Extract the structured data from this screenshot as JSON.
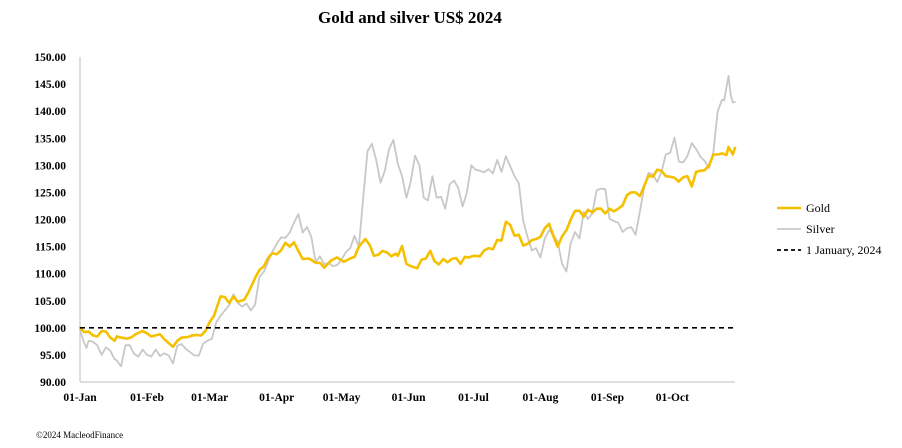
{
  "chart_data": {
    "type": "line",
    "title": "Gold and silver  US$ 2024",
    "xlabel": "",
    "ylabel": "",
    "ylim": [
      90,
      150
    ],
    "y_ticks": [
      "90.00",
      "95.00",
      "100.00",
      "105.00",
      "110.00",
      "115.00",
      "120.00",
      "125.00",
      "130.00",
      "135.00",
      "140.00",
      "145.00",
      "150.00"
    ],
    "x_ticks": [
      "01-Jan",
      "01-Feb",
      "01-Mar",
      "01-Apr",
      "01-May",
      "01-Jun",
      "01-Jul",
      "01-Aug",
      "01-Sep",
      "01-Oct"
    ],
    "x_range_days": [
      1,
      304
    ],
    "x_tick_days": [
      1,
      32,
      61,
      92,
      122,
      153,
      183,
      214,
      245,
      275
    ],
    "legend_position": "right",
    "series": [
      {
        "name": "Gold",
        "color": "#F5C000",
        "points": [
          [
            1,
            100
          ],
          [
            3,
            99.2
          ],
          [
            5,
            99.3
          ],
          [
            7,
            98.6
          ],
          [
            9,
            98.4
          ],
          [
            11,
            99.4
          ],
          [
            13,
            99.3
          ],
          [
            15,
            98.2
          ],
          [
            17,
            97.6
          ],
          [
            18,
            98.4
          ],
          [
            20,
            98.2
          ],
          [
            23,
            98.0
          ],
          [
            25,
            98.3
          ],
          [
            27,
            98.9
          ],
          [
            30,
            99.4
          ],
          [
            32,
            99.0
          ],
          [
            34,
            98.4
          ],
          [
            36,
            98.6
          ],
          [
            38,
            98.8
          ],
          [
            40,
            97.9
          ],
          [
            42,
            97.2
          ],
          [
            44,
            96.5
          ],
          [
            46,
            97.6
          ],
          [
            48,
            98.2
          ],
          [
            51,
            98.3
          ],
          [
            53,
            98.6
          ],
          [
            55,
            98.7
          ],
          [
            57,
            98.6
          ],
          [
            59,
            99.4
          ],
          [
            61,
            101.1
          ],
          [
            63,
            102.2
          ],
          [
            66,
            105.8
          ],
          [
            68,
            105.7
          ],
          [
            70,
            104.6
          ],
          [
            72,
            105.8
          ],
          [
            74,
            104.8
          ],
          [
            77,
            105.2
          ],
          [
            79,
            106.6
          ],
          [
            82,
            109.2
          ],
          [
            84,
            110.7
          ],
          [
            86,
            111.3
          ],
          [
            88,
            112.9
          ],
          [
            90,
            113.8
          ],
          [
            92,
            113.6
          ],
          [
            94,
            114.3
          ],
          [
            96,
            115.7
          ],
          [
            98,
            115.0
          ],
          [
            100,
            115.8
          ],
          [
            102,
            114.2
          ],
          [
            104,
            112.7
          ],
          [
            107,
            112.8
          ],
          [
            110,
            112.0
          ],
          [
            112,
            112.0
          ],
          [
            114,
            111.1
          ],
          [
            117,
            112.4
          ],
          [
            120,
            113.0
          ],
          [
            123,
            112.2
          ],
          [
            126,
            112.8
          ],
          [
            128,
            113.1
          ],
          [
            130,
            115.0
          ],
          [
            133,
            116.4
          ],
          [
            135,
            115.3
          ],
          [
            137,
            113.3
          ],
          [
            139,
            113.5
          ],
          [
            141,
            114.2
          ],
          [
            143,
            113.9
          ],
          [
            145,
            113.2
          ],
          [
            147,
            113.7
          ],
          [
            148,
            113.3
          ],
          [
            150,
            115.1
          ],
          [
            152,
            111.8
          ],
          [
            154,
            111.4
          ],
          [
            157,
            111.0
          ],
          [
            159,
            112.6
          ],
          [
            161,
            112.8
          ],
          [
            163,
            114.2
          ],
          [
            165,
            112.3
          ],
          [
            167,
            111.7
          ],
          [
            169,
            112.7
          ],
          [
            171,
            112.1
          ],
          [
            173,
            112.7
          ],
          [
            175,
            112.9
          ],
          [
            177,
            111.8
          ],
          [
            179,
            113.1
          ],
          [
            181,
            113.0
          ],
          [
            183,
            113.3
          ],
          [
            186,
            113.2
          ],
          [
            188,
            114.3
          ],
          [
            190,
            114.7
          ],
          [
            192,
            114.5
          ],
          [
            194,
            116.2
          ],
          [
            196,
            116.1
          ],
          [
            198,
            119.6
          ],
          [
            200,
            119.0
          ],
          [
            202,
            117.0
          ],
          [
            204,
            117.2
          ],
          [
            206,
            115.2
          ],
          [
            208,
            115.5
          ],
          [
            210,
            116.2
          ],
          [
            212,
            116.4
          ],
          [
            214,
            116.8
          ],
          [
            216,
            118.4
          ],
          [
            218,
            119.2
          ],
          [
            220,
            116.9
          ],
          [
            222,
            115.0
          ],
          [
            224,
            116.9
          ],
          [
            226,
            118.0
          ],
          [
            228,
            120.0
          ],
          [
            230,
            121.6
          ],
          [
            232,
            121.6
          ],
          [
            234,
            120.5
          ],
          [
            236,
            121.8
          ],
          [
            238,
            121.3
          ],
          [
            240,
            122.0
          ],
          [
            242,
            122.0
          ],
          [
            244,
            121.1
          ],
          [
            246,
            122.0
          ],
          [
            248,
            121.5
          ],
          [
            250,
            122.0
          ],
          [
            252,
            122.6
          ],
          [
            254,
            124.5
          ],
          [
            256,
            125.0
          ],
          [
            258,
            125.0
          ],
          [
            260,
            124.3
          ],
          [
            262,
            126.2
          ],
          [
            264,
            128.1
          ],
          [
            266,
            127.9
          ],
          [
            268,
            129.2
          ],
          [
            270,
            129.0
          ],
          [
            272,
            128.0
          ],
          [
            274,
            127.9
          ],
          [
            276,
            127.7
          ],
          [
            278,
            127.0
          ],
          [
            280,
            127.8
          ],
          [
            282,
            128.0
          ],
          [
            284,
            126.1
          ],
          [
            286,
            128.8
          ],
          [
            288,
            129.0
          ],
          [
            290,
            129.1
          ],
          [
            292,
            130.0
          ],
          [
            294,
            132.0
          ],
          [
            296,
            132.0
          ],
          [
            298,
            132.2
          ],
          [
            300,
            131.9
          ],
          [
            301,
            133.4
          ],
          [
            303,
            132.0
          ],
          [
            304,
            133.2
          ]
        ]
      },
      {
        "name": "Silver",
        "color": "#C8C8C8",
        "points": [
          [
            1,
            99.5
          ],
          [
            3,
            97.2
          ],
          [
            4,
            96.3
          ],
          [
            5,
            97.6
          ],
          [
            7,
            97.4
          ],
          [
            9,
            96.8
          ],
          [
            11,
            95.0
          ],
          [
            13,
            96.4
          ],
          [
            15,
            95.8
          ],
          [
            17,
            94.2
          ],
          [
            18,
            94.0
          ],
          [
            20,
            92.9
          ],
          [
            22,
            96.8
          ],
          [
            24,
            96.8
          ],
          [
            26,
            95.2
          ],
          [
            28,
            94.7
          ],
          [
            30,
            96.0
          ],
          [
            32,
            95.0
          ],
          [
            34,
            94.7
          ],
          [
            36,
            96.0
          ],
          [
            38,
            94.8
          ],
          [
            40,
            95.3
          ],
          [
            42,
            94.9
          ],
          [
            44,
            93.4
          ],
          [
            46,
            96.7
          ],
          [
            48,
            97.0
          ],
          [
            50,
            96.1
          ],
          [
            52,
            95.5
          ],
          [
            54,
            94.9
          ],
          [
            56,
            94.9
          ],
          [
            58,
            97.1
          ],
          [
            60,
            97.6
          ],
          [
            62,
            98.0
          ],
          [
            64,
            101.0
          ],
          [
            66,
            102.2
          ],
          [
            68,
            103.2
          ],
          [
            70,
            104.2
          ],
          [
            72,
            106.2
          ],
          [
            74,
            104.6
          ],
          [
            76,
            103.9
          ],
          [
            78,
            104.5
          ],
          [
            80,
            103.2
          ],
          [
            82,
            104.3
          ],
          [
            84,
            109.4
          ],
          [
            86,
            110.3
          ],
          [
            88,
            112.2
          ],
          [
            90,
            114.1
          ],
          [
            92,
            115.5
          ],
          [
            94,
            116.7
          ],
          [
            96,
            116.6
          ],
          [
            98,
            117.6
          ],
          [
            100,
            119.4
          ],
          [
            102,
            121.0
          ],
          [
            104,
            117.6
          ],
          [
            106,
            118.6
          ],
          [
            108,
            116.8
          ],
          [
            110,
            112.2
          ],
          [
            112,
            113.2
          ],
          [
            114,
            111.7
          ],
          [
            116,
            112.0
          ],
          [
            118,
            111.4
          ],
          [
            120,
            111.6
          ],
          [
            122,
            112.6
          ],
          [
            124,
            114.0
          ],
          [
            126,
            114.7
          ],
          [
            128,
            117.0
          ],
          [
            130,
            115.0
          ],
          [
            132,
            124.0
          ],
          [
            134,
            132.6
          ],
          [
            136,
            134.0
          ],
          [
            138,
            131.0
          ],
          [
            140,
            126.8
          ],
          [
            142,
            129.0
          ],
          [
            144,
            133.0
          ],
          [
            146,
            134.7
          ],
          [
            148,
            130.3
          ],
          [
            150,
            128.0
          ],
          [
            152,
            124.0
          ],
          [
            154,
            127.0
          ],
          [
            156,
            131.8
          ],
          [
            158,
            130.0
          ],
          [
            160,
            124.0
          ],
          [
            162,
            123.5
          ],
          [
            164,
            128.0
          ],
          [
            166,
            124.0
          ],
          [
            168,
            124.2
          ],
          [
            170,
            122.0
          ],
          [
            172,
            126.5
          ],
          [
            174,
            127.2
          ],
          [
            176,
            125.8
          ],
          [
            178,
            122.4
          ],
          [
            180,
            125.0
          ],
          [
            182,
            130.0
          ],
          [
            184,
            129.2
          ],
          [
            186,
            129.0
          ],
          [
            188,
            128.7
          ],
          [
            190,
            129.3
          ],
          [
            192,
            128.5
          ],
          [
            194,
            131.0
          ],
          [
            196,
            128.8
          ],
          [
            198,
            131.7
          ],
          [
            200,
            129.8
          ],
          [
            202,
            128.0
          ],
          [
            204,
            126.7
          ],
          [
            206,
            119.8
          ],
          [
            208,
            116.8
          ],
          [
            210,
            114.3
          ],
          [
            212,
            114.7
          ],
          [
            214,
            113.0
          ],
          [
            216,
            116.5
          ],
          [
            218,
            118.0
          ],
          [
            220,
            117.2
          ],
          [
            222,
            115.9
          ],
          [
            224,
            111.8
          ],
          [
            226,
            110.4
          ],
          [
            228,
            115.6
          ],
          [
            230,
            117.7
          ],
          [
            232,
            116.5
          ],
          [
            234,
            121.4
          ],
          [
            236,
            120.1
          ],
          [
            238,
            121.1
          ],
          [
            240,
            125.4
          ],
          [
            242,
            125.7
          ],
          [
            244,
            125.6
          ],
          [
            246,
            120.1
          ],
          [
            248,
            119.7
          ],
          [
            250,
            119.4
          ],
          [
            252,
            117.7
          ],
          [
            254,
            118.4
          ],
          [
            256,
            118.6
          ],
          [
            258,
            117.2
          ],
          [
            260,
            121.5
          ],
          [
            262,
            125.9
          ],
          [
            264,
            128.6
          ],
          [
            266,
            128.3
          ],
          [
            268,
            126.9
          ],
          [
            270,
            128.8
          ],
          [
            272,
            132.0
          ],
          [
            274,
            132.3
          ],
          [
            276,
            135.1
          ],
          [
            278,
            130.7
          ],
          [
            280,
            130.5
          ],
          [
            282,
            131.7
          ],
          [
            284,
            134.1
          ],
          [
            286,
            133.0
          ],
          [
            288,
            131.6
          ],
          [
            290,
            130.8
          ],
          [
            292,
            129.5
          ],
          [
            294,
            132.5
          ],
          [
            296,
            140.0
          ],
          [
            298,
            142.1
          ],
          [
            299,
            142.0
          ],
          [
            301,
            146.5
          ],
          [
            302,
            143.0
          ],
          [
            303,
            141.6
          ],
          [
            304,
            141.7
          ]
        ]
      },
      {
        "name": "1 January, 2024",
        "color": "#000000",
        "style": "dashed",
        "points": [
          [
            1,
            100
          ],
          [
            304,
            100
          ]
        ]
      }
    ]
  },
  "copyright": "©2024 MacleodFinance"
}
